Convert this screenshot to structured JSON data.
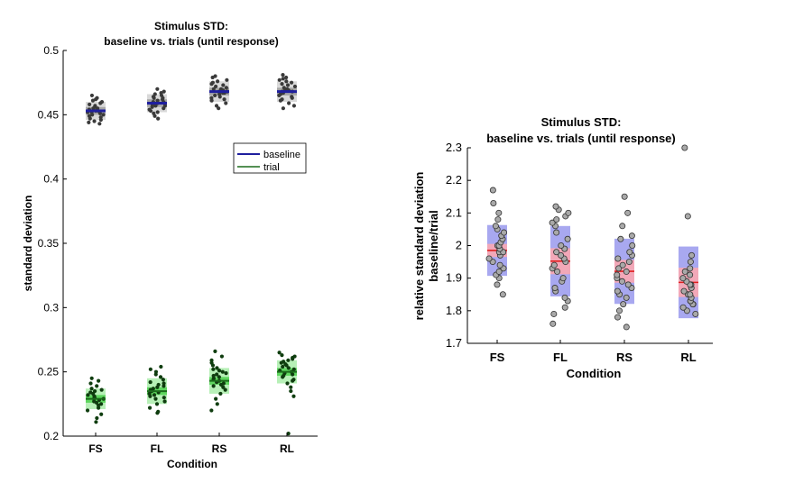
{
  "chart_data": [
    {
      "type": "scatter",
      "title_line1": "Stimulus STD:",
      "title_line2": "baseline vs. trials (until response)",
      "xlabel": "Condition",
      "ylabel": "standard deviation",
      "categories": [
        "FS",
        "FL",
        "RS",
        "RL"
      ],
      "ylim": [
        0.2,
        0.5
      ],
      "yticks": [
        "0.2",
        "0.25",
        "0.3",
        "0.35",
        "0.4",
        "0.45",
        "0.5"
      ],
      "legend": {
        "placement": "right",
        "entries": [
          "baseline",
          "trial"
        ]
      },
      "colors": {
        "baseline_line": "#1f1f9e",
        "trial_line": "#1b6b1b",
        "baseline_box_outer": "#d9d9d9",
        "baseline_box_inner": "#a6a6a6",
        "trial_box_outer": "#b7f0b7",
        "trial_box_inner": "#5ed65e",
        "baseline_dot": "#3a3a3a",
        "trial_dot": "#0f3d0f"
      },
      "series": [
        {
          "name": "baseline",
          "means": [
            0.453,
            0.459,
            0.468,
            0.468
          ],
          "sem": [
            0.003,
            0.003,
            0.003,
            0.003
          ],
          "sd": [
            0.007,
            0.007,
            0.008,
            0.008
          ],
          "points": [
            [
              0.443,
              0.444,
              0.445,
              0.446,
              0.447,
              0.448,
              0.449,
              0.45,
              0.45,
              0.451,
              0.452,
              0.452,
              0.453,
              0.453,
              0.454,
              0.455,
              0.455,
              0.456,
              0.457,
              0.458,
              0.459,
              0.46,
              0.461,
              0.462,
              0.463,
              0.465
            ],
            [
              0.447,
              0.449,
              0.451,
              0.452,
              0.453,
              0.454,
              0.455,
              0.456,
              0.457,
              0.457,
              0.458,
              0.459,
              0.459,
              0.46,
              0.46,
              0.461,
              0.462,
              0.463,
              0.463,
              0.464,
              0.465,
              0.466,
              0.467,
              0.468,
              0.47
            ],
            [
              0.455,
              0.457,
              0.459,
              0.461,
              0.462,
              0.463,
              0.464,
              0.465,
              0.466,
              0.467,
              0.467,
              0.468,
              0.468,
              0.469,
              0.47,
              0.47,
              0.471,
              0.472,
              0.473,
              0.474,
              0.475,
              0.476,
              0.477,
              0.479,
              0.48
            ],
            [
              0.455,
              0.457,
              0.459,
              0.461,
              0.462,
              0.463,
              0.464,
              0.465,
              0.466,
              0.467,
              0.468,
              0.468,
              0.469,
              0.469,
              0.47,
              0.471,
              0.472,
              0.473,
              0.474,
              0.475,
              0.476,
              0.477,
              0.478,
              0.479,
              0.481
            ]
          ]
        },
        {
          "name": "trial",
          "means": [
            0.229,
            0.235,
            0.243,
            0.25
          ],
          "sem": [
            0.003,
            0.003,
            0.003,
            0.003
          ],
          "sd": [
            0.008,
            0.01,
            0.01,
            0.009
          ],
          "points": [
            [
              0.211,
              0.214,
              0.217,
              0.22,
              0.222,
              0.224,
              0.225,
              0.226,
              0.227,
              0.228,
              0.229,
              0.229,
              0.23,
              0.231,
              0.232,
              0.233,
              0.234,
              0.235,
              0.236,
              0.237,
              0.239,
              0.241,
              0.243,
              0.245
            ],
            [
              0.218,
              0.219,
              0.222,
              0.225,
              0.227,
              0.229,
              0.23,
              0.231,
              0.232,
              0.233,
              0.234,
              0.235,
              0.236,
              0.237,
              0.238,
              0.239,
              0.24,
              0.241,
              0.242,
              0.244,
              0.246,
              0.248,
              0.25,
              0.252,
              0.254
            ],
            [
              0.22,
              0.225,
              0.229,
              0.233,
              0.236,
              0.238,
              0.239,
              0.24,
              0.241,
              0.242,
              0.243,
              0.244,
              0.245,
              0.246,
              0.247,
              0.248,
              0.249,
              0.25,
              0.251,
              0.252,
              0.253,
              0.255,
              0.257,
              0.259,
              0.262,
              0.266
            ],
            [
              0.202,
              0.231,
              0.235,
              0.238,
              0.241,
              0.243,
              0.244,
              0.246,
              0.247,
              0.248,
              0.249,
              0.25,
              0.251,
              0.252,
              0.253,
              0.254,
              0.255,
              0.256,
              0.257,
              0.258,
              0.259,
              0.26,
              0.261,
              0.262,
              0.263,
              0.265
            ]
          ]
        }
      ]
    },
    {
      "type": "scatter",
      "title_line1": "Stimulus STD:",
      "title_line2": "baseline vs. trials (until response)",
      "xlabel": "Condition",
      "ylabel_line1": "relative standard deviation",
      "ylabel_line2": "baseline/trial",
      "categories": [
        "FS",
        "FL",
        "RS",
        "RL"
      ],
      "ylim": [
        1.7,
        2.3
      ],
      "yticks": [
        "1.7",
        "1.8",
        "1.9",
        "2",
        "2.1",
        "2.2",
        "2.3"
      ],
      "colors": {
        "sd_box": "#a8a8f0",
        "sem_box": "#f2a8b8",
        "mean_line": "#e02020",
        "dot_fill": "#a9a9a9",
        "dot_stroke": "#333333"
      },
      "means": [
        1.985,
        1.952,
        1.921,
        1.887
      ],
      "sem": [
        0.02,
        0.04,
        0.035,
        0.045
      ],
      "sd": [
        0.078,
        0.108,
        0.1,
        0.11
      ],
      "points": [
        [
          1.85,
          1.88,
          1.9,
          1.91,
          1.92,
          1.93,
          1.94,
          1.95,
          1.96,
          1.97,
          1.98,
          1.98,
          1.99,
          2.0,
          2.0,
          2.01,
          2.02,
          2.03,
          2.04,
          2.05,
          2.06,
          2.08,
          2.1,
          2.13,
          2.17
        ],
        [
          1.76,
          1.79,
          1.81,
          1.83,
          1.84,
          1.86,
          1.87,
          1.89,
          1.9,
          1.92,
          1.93,
          1.94,
          1.95,
          1.96,
          1.97,
          1.98,
          1.99,
          2.0,
          2.02,
          2.04,
          2.06,
          2.07,
          2.08,
          2.09,
          2.1,
          2.11,
          2.12
        ],
        [
          1.75,
          1.78,
          1.8,
          1.82,
          1.84,
          1.85,
          1.86,
          1.87,
          1.88,
          1.89,
          1.9,
          1.91,
          1.92,
          1.93,
          1.94,
          1.95,
          1.96,
          1.97,
          1.98,
          2.0,
          2.02,
          2.03,
          2.06,
          2.1,
          2.15
        ],
        [
          1.79,
          1.8,
          1.81,
          1.82,
          1.82,
          1.83,
          1.83,
          1.84,
          1.85,
          1.85,
          1.86,
          1.87,
          1.88,
          1.88,
          1.89,
          1.9,
          1.91,
          1.92,
          1.93,
          1.95,
          1.97,
          2.09,
          2.3
        ]
      ]
    }
  ]
}
